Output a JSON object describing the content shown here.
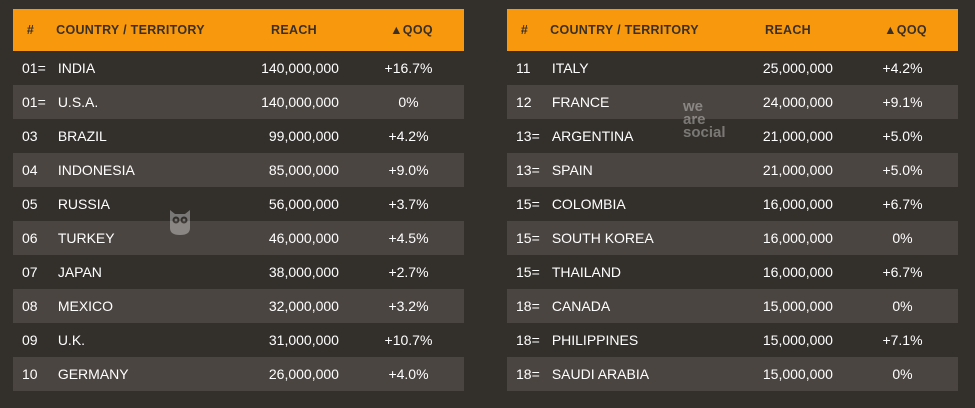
{
  "headers": {
    "rank": "#",
    "country": "COUNTRY / TERRITORY",
    "reach": "REACH",
    "qoq": "▲QOQ"
  },
  "left_rows": [
    {
      "rank": "01=",
      "country": "INDIA",
      "reach": "140,000,000",
      "qoq": "+16.7%"
    },
    {
      "rank": "01=",
      "country": "U.S.A.",
      "reach": "140,000,000",
      "qoq": "0%"
    },
    {
      "rank": "03",
      "country": "BRAZIL",
      "reach": "99,000,000",
      "qoq": "+4.2%"
    },
    {
      "rank": "04",
      "country": "INDONESIA",
      "reach": "85,000,000",
      "qoq": "+9.0%"
    },
    {
      "rank": "05",
      "country": "RUSSIA",
      "reach": "56,000,000",
      "qoq": "+3.7%"
    },
    {
      "rank": "06",
      "country": "TURKEY",
      "reach": "46,000,000",
      "qoq": "+4.5%"
    },
    {
      "rank": "07",
      "country": "JAPAN",
      "reach": "38,000,000",
      "qoq": "+2.7%"
    },
    {
      "rank": "08",
      "country": "MEXICO",
      "reach": "32,000,000",
      "qoq": "+3.2%"
    },
    {
      "rank": "09",
      "country": "U.K.",
      "reach": "31,000,000",
      "qoq": "+10.7%"
    },
    {
      "rank": "10",
      "country": "GERMANY",
      "reach": "26,000,000",
      "qoq": "+4.0%"
    }
  ],
  "right_rows": [
    {
      "rank": "11",
      "country": "ITALY",
      "reach": "25,000,000",
      "qoq": "+4.2%"
    },
    {
      "rank": "12",
      "country": "FRANCE",
      "reach": "24,000,000",
      "qoq": "+9.1%"
    },
    {
      "rank": "13=",
      "country": "ARGENTINA",
      "reach": "21,000,000",
      "qoq": "+5.0%"
    },
    {
      "rank": "13=",
      "country": "SPAIN",
      "reach": "21,000,000",
      "qoq": "+5.0%"
    },
    {
      "rank": "15=",
      "country": "COLOMBIA",
      "reach": "16,000,000",
      "qoq": "+6.7%"
    },
    {
      "rank": "15=",
      "country": "SOUTH KOREA",
      "reach": "16,000,000",
      "qoq": "0%"
    },
    {
      "rank": "15=",
      "country": "THAILAND",
      "reach": "16,000,000",
      "qoq": "+6.7%"
    },
    {
      "rank": "18=",
      "country": "CANADA",
      "reach": "15,000,000",
      "qoq": "0%"
    },
    {
      "rank": "18=",
      "country": "PHILIPPINES",
      "reach": "15,000,000",
      "qoq": "+7.1%"
    },
    {
      "rank": "18=",
      "country": "SAUDI ARABIA",
      "reach": "15,000,000",
      "qoq": "0%"
    }
  ],
  "watermark": {
    "text_line1": "we",
    "text_line2": "are",
    "text_line3": "social",
    "logo_icon": "owl-logo-icon"
  },
  "colors": {
    "header_bg": "#f8980c",
    "header_text": "#3a3028",
    "page_bg": "#33302c",
    "alt_row_bg": "#4b4541"
  }
}
